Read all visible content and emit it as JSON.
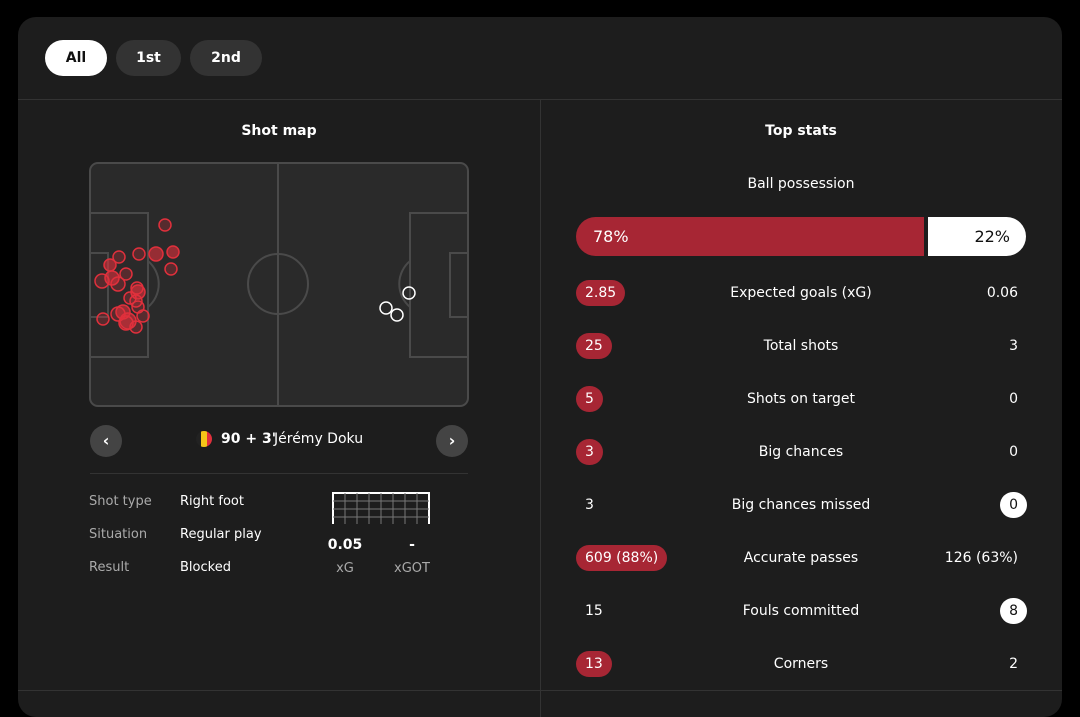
{
  "tabs": [
    "All",
    "1st",
    "2nd"
  ],
  "shot_map": {
    "title": "Shot map",
    "time": "90 + 3'",
    "player": "Jérémy Doku",
    "details": [
      {
        "label": "Shot type",
        "value": "Right foot"
      },
      {
        "label": "Situation",
        "value": "Regular play"
      },
      {
        "label": "Result",
        "value": "Blocked"
      }
    ],
    "metrics": [
      {
        "value": "0.05",
        "label": "xG"
      },
      {
        "value": "-",
        "label": "xGOT"
      }
    ]
  },
  "top_stats": {
    "title": "Top stats",
    "possession": {
      "label": "Ball possession",
      "values": [
        78,
        22
      ],
      "value_labels": [
        "78%",
        "22%"
      ]
    },
    "rows": [
      {
        "name": "Expected goals (xG)",
        "home": "2.85",
        "away": "0.06",
        "highlight": "home"
      },
      {
        "name": "Total shots",
        "home": "25",
        "away": "3",
        "highlight": "home"
      },
      {
        "name": "Shots on target",
        "home": "5",
        "away": "0",
        "highlight": "home"
      },
      {
        "name": "Big chances",
        "home": "3",
        "away": "0",
        "highlight": "home"
      },
      {
        "name": "Big chances missed",
        "home": "3",
        "away": "0",
        "highlight": "away"
      },
      {
        "name": "Accurate passes",
        "home": "609 (88%)",
        "away": "126 (63%)",
        "highlight": "home"
      },
      {
        "name": "Fouls committed",
        "home": "15",
        "away": "8",
        "highlight": "away"
      },
      {
        "name": "Corners",
        "home": "13",
        "away": "2",
        "highlight": "home"
      }
    ]
  }
}
